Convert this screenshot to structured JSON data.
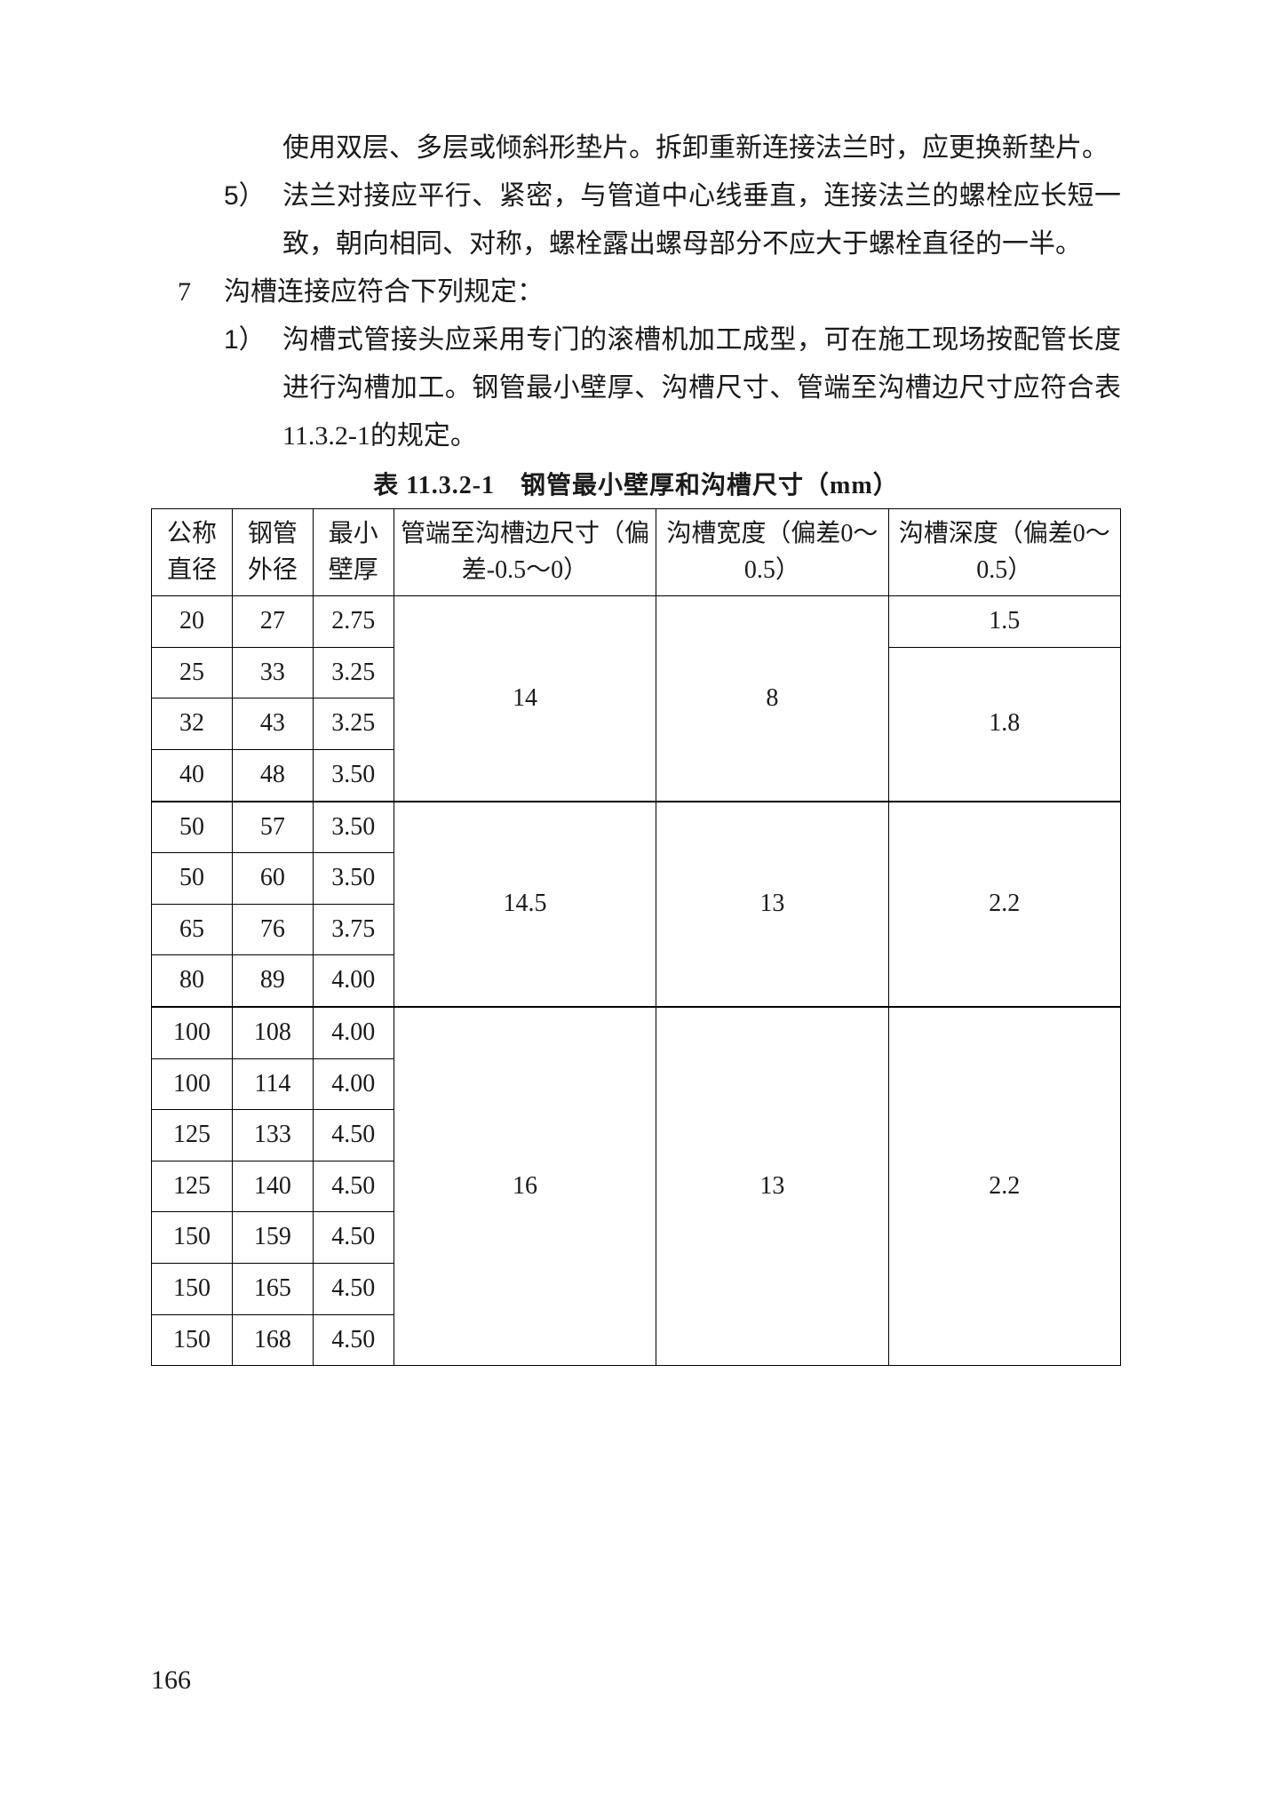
{
  "body": {
    "cont4": "使用双层、多层或倾斜形垫片。拆卸重新连接法兰时，应更换新垫片。",
    "item5_num": "5）",
    "item5": "法兰对接应平行、紧密，与管道中心线垂直，连接法兰的螺栓应长短一致，朝向相同、对称，螺栓露出螺母部分不应大于螺栓直径的一半。",
    "main7_num": "7",
    "main7": "沟槽连接应符合下列规定：",
    "sub1_num": "1）",
    "sub1": "沟槽式管接头应采用专门的滚槽机加工成型，可在施工现场按配管长度进行沟槽加工。钢管最小壁厚、沟槽尺寸、管端至沟槽边尺寸应符合表11.3.2-1的规定。"
  },
  "table": {
    "title": "表 11.3.2-1　钢管最小壁厚和沟槽尺寸（mm）",
    "columns": [
      "公称直径",
      "钢管外径",
      "最小壁厚",
      "管端至沟槽边尺寸（偏差-0.5～0）",
      "沟槽宽度（偏差0～0.5）",
      "沟槽深度（偏差0～0.5）"
    ],
    "col_widths": [
      "80px",
      "80px",
      "80px",
      "260px",
      "230px",
      "230px"
    ],
    "col_align": [
      "center",
      "center",
      "center",
      "center",
      "center",
      "center"
    ],
    "header_bg": "#ffffff",
    "border_color": "#000000",
    "fontsize": 28,
    "groups": [
      {
        "end_to_groove": "14",
        "groove_width": "8",
        "depth_rows": [
          {
            "span": 1,
            "value": "1.5"
          },
          {
            "span": 3,
            "value": "1.8"
          }
        ],
        "rows": [
          {
            "dn": "20",
            "od": "27",
            "wt": "2.75"
          },
          {
            "dn": "25",
            "od": "33",
            "wt": "3.25"
          },
          {
            "dn": "32",
            "od": "43",
            "wt": "3.25"
          },
          {
            "dn": "40",
            "od": "48",
            "wt": "3.50"
          }
        ]
      },
      {
        "end_to_groove": "14.5",
        "groove_width": "13",
        "depth_rows": [
          {
            "span": 4,
            "value": "2.2"
          }
        ],
        "rows": [
          {
            "dn": "50",
            "od": "57",
            "wt": "3.50"
          },
          {
            "dn": "50",
            "od": "60",
            "wt": "3.50"
          },
          {
            "dn": "65",
            "od": "76",
            "wt": "3.75"
          },
          {
            "dn": "80",
            "od": "89",
            "wt": "4.00"
          }
        ]
      },
      {
        "end_to_groove": "16",
        "groove_width": "13",
        "depth_rows": [
          {
            "span": 7,
            "value": "2.2"
          }
        ],
        "rows": [
          {
            "dn": "100",
            "od": "108",
            "wt": "4.00"
          },
          {
            "dn": "100",
            "od": "114",
            "wt": "4.00"
          },
          {
            "dn": "125",
            "od": "133",
            "wt": "4.50"
          },
          {
            "dn": "125",
            "od": "140",
            "wt": "4.50"
          },
          {
            "dn": "150",
            "od": "159",
            "wt": "4.50"
          },
          {
            "dn": "150",
            "od": "165",
            "wt": "4.50"
          },
          {
            "dn": "150",
            "od": "168",
            "wt": "4.50"
          }
        ]
      }
    ]
  },
  "page_number": "166"
}
